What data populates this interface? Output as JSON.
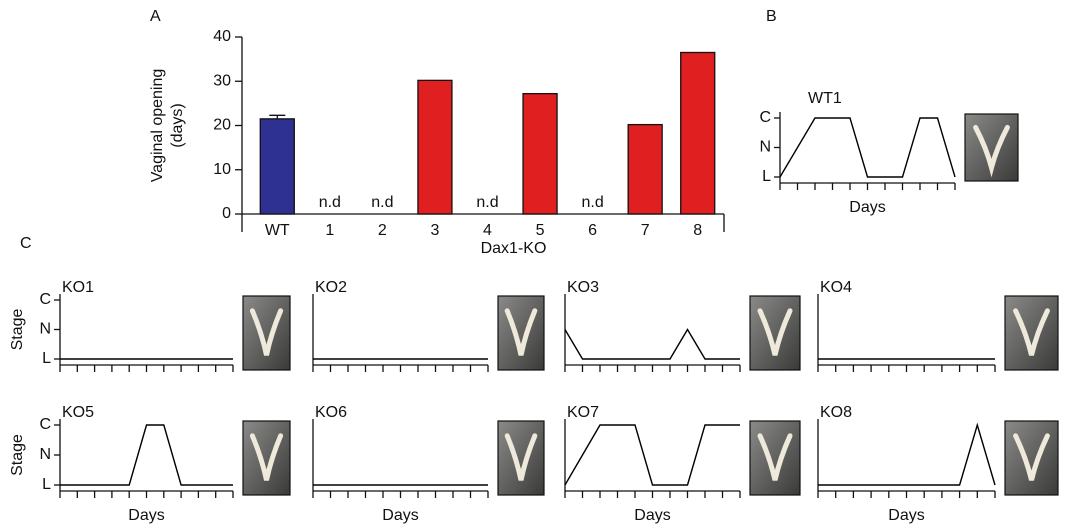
{
  "chart_data": [
    {
      "type": "bar",
      "panel": "A",
      "ylabel": [
        "Vaginal opening",
        "(days)"
      ],
      "categories": [
        "WT",
        "1",
        "2",
        "3",
        "4",
        "5",
        "6",
        "7",
        "8"
      ],
      "group_label": "Dax1-KO",
      "values": [
        21.5,
        null,
        null,
        30.2,
        null,
        27.2,
        null,
        20.2,
        36.5
      ],
      "errors": [
        0.8,
        null,
        null,
        null,
        null,
        null,
        null,
        null,
        null
      ],
      "value_labels": [
        null,
        "n.d",
        "n.d",
        null,
        "n.d",
        null,
        "n.d",
        null,
        null
      ],
      "colors": [
        "#2e3192",
        "#e02020",
        "#e02020",
        "#e02020",
        "#e02020",
        "#e02020",
        "#e02020",
        "#e02020",
        "#e02020"
      ],
      "ylim": [
        0,
        40
      ],
      "yticks": [
        0,
        10,
        20,
        30,
        40
      ]
    },
    {
      "type": "line",
      "panel": "B",
      "title": "WT1",
      "x": [
        0,
        2,
        4,
        5,
        7,
        8,
        9,
        10
      ],
      "values": [
        0,
        2,
        2,
        0,
        0,
        2,
        2,
        0
      ],
      "xlim": [
        0,
        10
      ],
      "ylim": [
        0,
        2
      ],
      "yticks": [
        {
          "value": 0,
          "label": "L"
        },
        {
          "value": 1,
          "label": "N"
        },
        {
          "value": 2,
          "label": "C"
        }
      ],
      "xlabel": "Days",
      "color": "#000000"
    },
    {
      "type": "line",
      "panel": "C",
      "title": "KO1",
      "ylabel": "Stage",
      "x": [
        0,
        10
      ],
      "values": [
        0,
        0
      ],
      "xlim": [
        0,
        10
      ],
      "ylim": [
        0,
        2
      ],
      "yticks": [
        {
          "value": 0,
          "label": "L"
        },
        {
          "value": 1,
          "label": "N"
        },
        {
          "value": 2,
          "label": "C"
        }
      ],
      "color": "#000000"
    },
    {
      "type": "line",
      "title": "KO2",
      "x": [
        0,
        10
      ],
      "values": [
        0,
        0
      ],
      "xlim": [
        0,
        10
      ],
      "ylim": [
        0,
        2
      ],
      "color": "#000000"
    },
    {
      "type": "line",
      "title": "KO3",
      "x": [
        0,
        1,
        6,
        7,
        8,
        10
      ],
      "values": [
        1,
        0,
        0,
        1,
        0,
        0
      ],
      "xlim": [
        0,
        10
      ],
      "ylim": [
        0,
        2
      ],
      "color": "#000000"
    },
    {
      "type": "line",
      "title": "KO4",
      "x": [
        0,
        10
      ],
      "values": [
        0,
        0
      ],
      "xlim": [
        0,
        10
      ],
      "ylim": [
        0,
        2
      ],
      "color": "#000000"
    },
    {
      "type": "line",
      "title": "KO5",
      "ylabel": "Stage",
      "x": [
        0,
        4,
        5,
        6,
        7,
        10
      ],
      "values": [
        0,
        0,
        2,
        2,
        0,
        0
      ],
      "xlim": [
        0,
        10
      ],
      "ylim": [
        0,
        2
      ],
      "yticks": [
        {
          "value": 0,
          "label": "L"
        },
        {
          "value": 1,
          "label": "N"
        },
        {
          "value": 2,
          "label": "C"
        }
      ],
      "xlabel": "Days",
      "color": "#000000"
    },
    {
      "type": "line",
      "title": "KO6",
      "x": [
        0,
        10
      ],
      "values": [
        0,
        0
      ],
      "xlim": [
        0,
        10
      ],
      "ylim": [
        0,
        2
      ],
      "xlabel": "Days",
      "color": "#000000"
    },
    {
      "type": "line",
      "title": "KO7",
      "x": [
        0,
        2,
        4,
        5,
        7,
        8,
        10
      ],
      "values": [
        0,
        2,
        2,
        0,
        0,
        2,
        2
      ],
      "xlim": [
        0,
        10
      ],
      "ylim": [
        0,
        2
      ],
      "xlabel": "Days",
      "color": "#000000"
    },
    {
      "type": "line",
      "title": "KO8",
      "x": [
        0,
        8,
        9,
        10
      ],
      "values": [
        0,
        0,
        2,
        0
      ],
      "xlim": [
        0,
        10
      ],
      "ylim": [
        0,
        2
      ],
      "xlabel": "Days",
      "color": "#000000"
    }
  ]
}
